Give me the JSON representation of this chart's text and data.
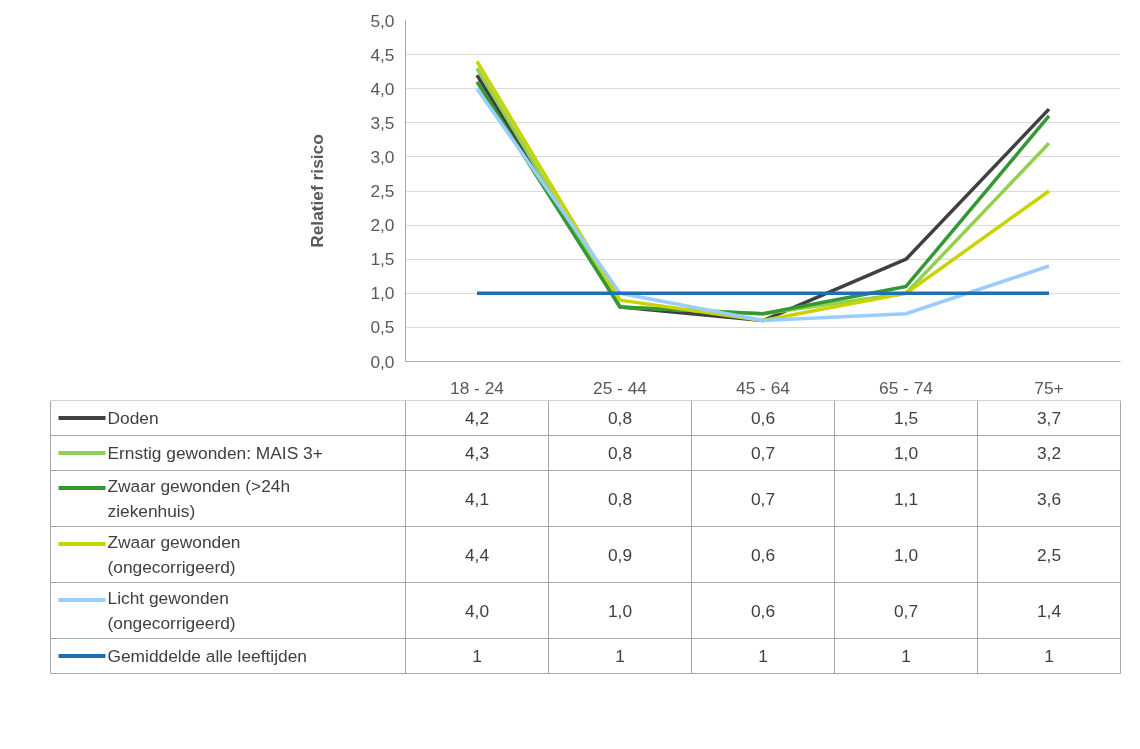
{
  "chart_data": {
    "type": "line",
    "ylabel": "Relatief risico",
    "categories": [
      "18 - 24",
      "25 - 44",
      "45 - 64",
      "65 - 74",
      "75+"
    ],
    "ylim": [
      0,
      5
    ],
    "yticks": [
      {
        "value": 0,
        "label": "0,0"
      },
      {
        "value": 0.5,
        "label": "0,5"
      },
      {
        "value": 1,
        "label": "1,0"
      },
      {
        "value": 1.5,
        "label": "1,5"
      },
      {
        "value": 2,
        "label": "2,0"
      },
      {
        "value": 2.5,
        "label": "2,5"
      },
      {
        "value": 3,
        "label": "3,0"
      },
      {
        "value": 3.5,
        "label": "3,5"
      },
      {
        "value": 4,
        "label": "4,0"
      },
      {
        "value": 4.5,
        "label": "4,5"
      },
      {
        "value": 5,
        "label": "5,0"
      }
    ],
    "grid": "y",
    "line_style": "solid",
    "marker": "none",
    "legend": "bottom",
    "series": [
      {
        "name": "Doden",
        "color": "#404040",
        "values": [
          4.2,
          0.8,
          0.6,
          1.5,
          3.7
        ],
        "value_labels": [
          "4,2",
          "0,8",
          "0,6",
          "1,5",
          "3,7"
        ]
      },
      {
        "name": "Ernstig gewonden: MAIS 3+",
        "color": "#92d050",
        "values": [
          4.3,
          0.8,
          0.7,
          1.0,
          3.2
        ],
        "value_labels": [
          "4,3",
          "0,8",
          "0,7",
          "1,0",
          "3,2"
        ]
      },
      {
        "name": "Zwaar gewonden (>24h ziekenhuis)",
        "color": "#339933",
        "values": [
          4.1,
          0.8,
          0.7,
          1.1,
          3.6
        ],
        "value_labels": [
          "4,1",
          "0,8",
          "0,7",
          "1,1",
          "3,6"
        ]
      },
      {
        "name": "Zwaar gewonden (ongecorrigeerd)",
        "color": "#c8d400",
        "values": [
          4.4,
          0.9,
          0.6,
          1.0,
          2.5
        ],
        "value_labels": [
          "4,4",
          "0,9",
          "0,6",
          "1,0",
          "2,5"
        ]
      },
      {
        "name": "Licht gewonden (ongecorrigeerd)",
        "color": "#99ccff",
        "values": [
          4.0,
          1.0,
          0.6,
          0.7,
          1.4
        ],
        "value_labels": [
          "4,0",
          "1,0",
          "0,6",
          "0,7",
          "1,4"
        ]
      },
      {
        "name": "Gemiddelde alle leeftijden",
        "color": "#1f6fb4",
        "values": [
          1,
          1,
          1,
          1,
          1
        ],
        "value_labels": [
          "1",
          "1",
          "1",
          "1",
          "1"
        ]
      }
    ]
  }
}
